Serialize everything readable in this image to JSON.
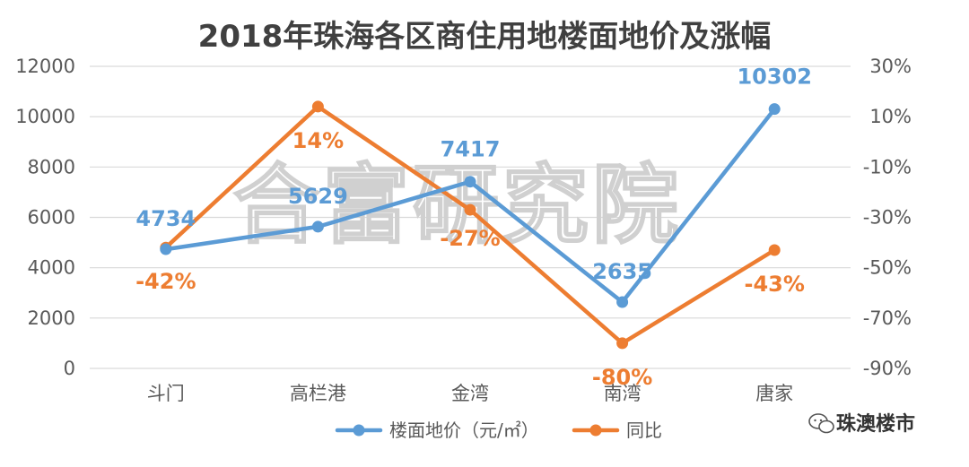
{
  "title": "2018年珠海各区商住用地楼面地价及涨幅",
  "chart_data": {
    "type": "line",
    "categories": [
      "斗门",
      "高栏港",
      "金湾",
      "南湾",
      "唐家"
    ],
    "series": [
      {
        "name": "楼面地价（元/㎡）",
        "axis": "left",
        "color": "#5b9bd5",
        "values": [
          4734,
          5629,
          7417,
          2635,
          10302
        ],
        "labels": [
          "4734",
          "5629",
          "7417",
          "2635",
          "10302"
        ]
      },
      {
        "name": "同比",
        "axis": "right",
        "color": "#ed7d31",
        "values": [
          -42,
          14,
          -27,
          -80,
          -43
        ],
        "labels": [
          "-42%",
          "14%",
          "-27%",
          "-80%",
          "-43%"
        ]
      }
    ],
    "y_left": {
      "min": 0,
      "max": 12000,
      "ticks": [
        0,
        2000,
        4000,
        6000,
        8000,
        10000,
        12000
      ],
      "tick_labels": [
        "0",
        "2000",
        "4000",
        "6000",
        "8000",
        "10000",
        "12000"
      ]
    },
    "y_right": {
      "min": -90,
      "max": 30,
      "ticks": [
        -90,
        -70,
        -50,
        -30,
        -10,
        10,
        30
      ],
      "tick_labels": [
        "-90%",
        "-70%",
        "-50%",
        "-30%",
        "-10%",
        "10%",
        "30%"
      ]
    },
    "grid": true,
    "legend": "bottom"
  },
  "watermark": "合富研究院",
  "brand": "珠澳楼市",
  "icons": {
    "brand": "wechat-icon"
  }
}
